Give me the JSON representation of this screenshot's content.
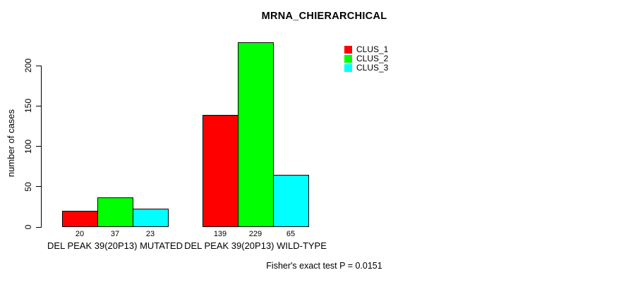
{
  "chart_data": {
    "type": "bar",
    "title": "MRNA_CHIERARCHICAL",
    "xlabel": "",
    "ylabel": "number of cases",
    "categories": [
      "DEL PEAK 39(20P13) MUTATED",
      "DEL PEAK 39(20P13) WILD-TYPE"
    ],
    "series": [
      {
        "name": "CLUS_1",
        "color": "#FF0000",
        "values": [
          20,
          139
        ]
      },
      {
        "name": "CLUS_2",
        "color": "#00FF00",
        "values": [
          37,
          229
        ]
      },
      {
        "name": "CLUS_3",
        "color": "#00FFFF",
        "values": [
          23,
          65
        ]
      }
    ],
    "y_ticks": [
      0,
      50,
      100,
      150,
      200
    ],
    "ylim": [
      0,
      232
    ],
    "grid": false,
    "bar_value_labels_shown": true,
    "legend": {
      "position": "top-right-inside",
      "entries": [
        "CLUS_1",
        "CLUS_2",
        "CLUS_3"
      ]
    },
    "annotation": "Fisher's exact test P = 0.0151"
  },
  "colors": {
    "background": "#FFFFFF",
    "axis": "#000000",
    "bar_border": "#000000",
    "text": "#000000"
  }
}
